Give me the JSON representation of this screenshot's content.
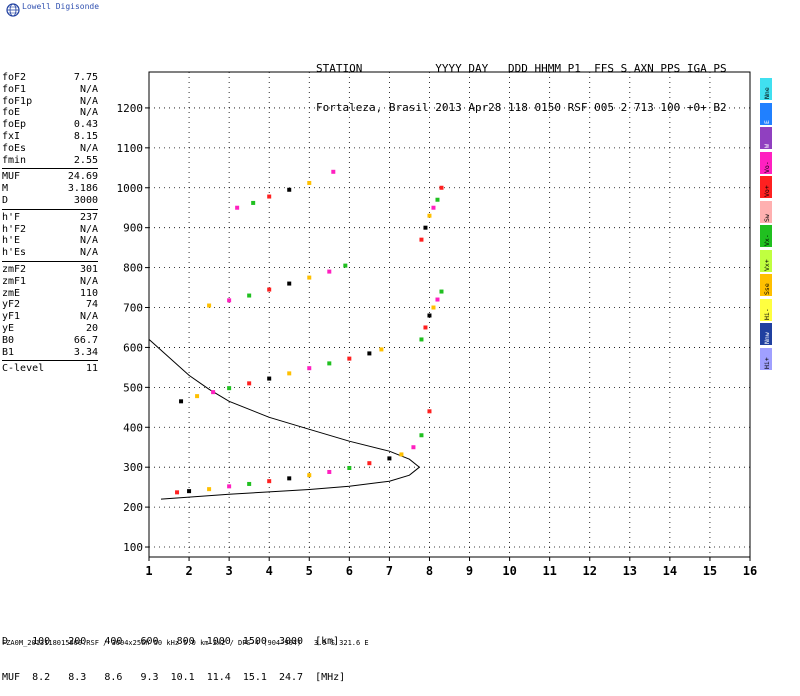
{
  "app": {
    "logo_text": "Lowell Digisonde"
  },
  "header": {
    "line1": "STATION           YYYY DAY   DDD HHMM P1  FFS S AXN PPS IGA PS",
    "line2": "Fortaleza, Brasil 2013 Apr28 118 0150 RSF 005 2 713 100 +0+ B2"
  },
  "params": [
    {
      "k": "foF2",
      "v": "7.75"
    },
    {
      "k": "foF1",
      "v": "N/A"
    },
    {
      "k": "foF1p",
      "v": "N/A"
    },
    {
      "k": "foE",
      "v": "N/A"
    },
    {
      "k": "foEp",
      "v": "0.43"
    },
    {
      "k": "fxI",
      "v": "8.15"
    },
    {
      "k": "foEs",
      "v": "N/A"
    },
    {
      "k": "fmin",
      "v": "2.55"
    },
    {
      "sep": true
    },
    {
      "k": "MUF",
      "v": "24.69"
    },
    {
      "k": "M",
      "v": "3.186"
    },
    {
      "k": "D",
      "v": "3000"
    },
    {
      "sep": true
    },
    {
      "k": "h'F",
      "v": "237"
    },
    {
      "k": "h'F2",
      "v": "N/A"
    },
    {
      "k": "h'E",
      "v": "N/A"
    },
    {
      "k": "h'Es",
      "v": "N/A"
    },
    {
      "sep": true
    },
    {
      "k": "zmF2",
      "v": "301"
    },
    {
      "k": "zmF1",
      "v": "N/A"
    },
    {
      "k": "zmE",
      "v": "110"
    },
    {
      "k": "yF2",
      "v": "74"
    },
    {
      "k": "yF1",
      "v": "N/A"
    },
    {
      "k": "yE",
      "v": "20"
    },
    {
      "k": "B0",
      "v": "66.7"
    },
    {
      "k": "B1",
      "v": "3.34"
    },
    {
      "sep": true
    },
    {
      "k": "C-level",
      "v": "11"
    }
  ],
  "dtable": {
    "row1": "D    100   200   400   600   800  1000  1500  3000  [km]",
    "row2": "MUF  8.2   8.3   8.6   9.3  10.1  11.4  15.1  24.7  [MHz]"
  },
  "footer": "FZA0M_2013118015000.RSF / 3004x256h 50 kHz 5.0 km 2x2 / DPS-4 (904-904)   3.9 S 321.6 E",
  "legend": [
    {
      "label": "Nne",
      "color": "#40e0f0"
    },
    {
      "label": "E",
      "color": "#2080ff"
    },
    {
      "label": "W",
      "color": "#9040c0"
    },
    {
      "label": "Vo-",
      "color": "#ff20c0"
    },
    {
      "label": "Vo+",
      "color": "#ff2020"
    },
    {
      "label": "Sw",
      "color": "#ffb0b0"
    },
    {
      "label": "Vx-",
      "color": "#20c020"
    },
    {
      "label": "Vx+",
      "color": "#c0ff40"
    },
    {
      "label": "Sse",
      "color": "#ffc000"
    },
    {
      "label": "Hi-",
      "color": "#ffff40"
    },
    {
      "label": "Nnw",
      "color": "#2040a0"
    },
    {
      "label": "Hi+",
      "color": "#a0a0ff"
    }
  ],
  "chart_data": {
    "type": "scatter",
    "xlabel": "",
    "ylabel": "",
    "xlim": [
      1,
      16
    ],
    "ylim": [
      75,
      1290
    ],
    "xticks": [
      1,
      2,
      3,
      4,
      5,
      6,
      7,
      8,
      9,
      10,
      11,
      12,
      13,
      14,
      15,
      16
    ],
    "yticks": [
      100,
      200,
      300,
      400,
      500,
      600,
      700,
      800,
      900,
      1000,
      1100,
      1200
    ],
    "grid": "dotted",
    "traces": [
      {
        "name": "",
        "x": [
          1.7,
          2.0,
          2.5,
          3.0,
          3.5,
          4.0,
          4.5,
          5.0,
          5.5,
          6.0,
          6.5,
          7.0,
          7.3,
          7.6,
          7.8,
          8.0
        ],
        "y": [
          237,
          240,
          245,
          252,
          258,
          265,
          272,
          280,
          288,
          298,
          310,
          322,
          332,
          350,
          380,
          440
        ]
      },
      {
        "name": "",
        "x": [
          1.8,
          2.2,
          2.6,
          3.0,
          3.5,
          4.0,
          4.5,
          5.0,
          5.5,
          6.0,
          6.5,
          6.8
        ],
        "y": [
          465,
          478,
          488,
          498,
          510,
          522,
          535,
          548,
          560,
          572,
          585,
          595
        ]
      },
      {
        "name": "",
        "x": [
          2.5,
          3.0,
          3.5,
          4.0,
          4.5,
          5.0,
          5.5,
          5.9
        ],
        "y": [
          705,
          718,
          730,
          745,
          760,
          775,
          790,
          805
        ]
      },
      {
        "name": "",
        "x": [
          3.2,
          3.6,
          4.0,
          4.5,
          5.0,
          5.6
        ],
        "y": [
          950,
          962,
          978,
          995,
          1012,
          1040
        ]
      },
      {
        "name": "",
        "x": [
          7.8,
          7.9,
          8.0,
          8.1,
          8.2,
          8.3
        ],
        "y": [
          620,
          650,
          680,
          700,
          720,
          740
        ]
      },
      {
        "name": "",
        "x": [
          7.8,
          7.9,
          8.0,
          8.1,
          8.2,
          8.3
        ],
        "y": [
          870,
          900,
          930,
          950,
          970,
          1000
        ]
      }
    ],
    "profile": {
      "x": [
        1.3,
        2.0,
        3.0,
        4.0,
        5.0,
        6.0,
        7.0,
        7.5,
        7.75,
        7.5,
        7.0,
        6.0,
        5.0,
        4.0,
        3.0,
        2.5,
        2.0,
        1.0
      ],
      "y": [
        220,
        225,
        232,
        238,
        244,
        252,
        265,
        280,
        300,
        320,
        340,
        365,
        395,
        425,
        465,
        495,
        530,
        620
      ]
    }
  }
}
